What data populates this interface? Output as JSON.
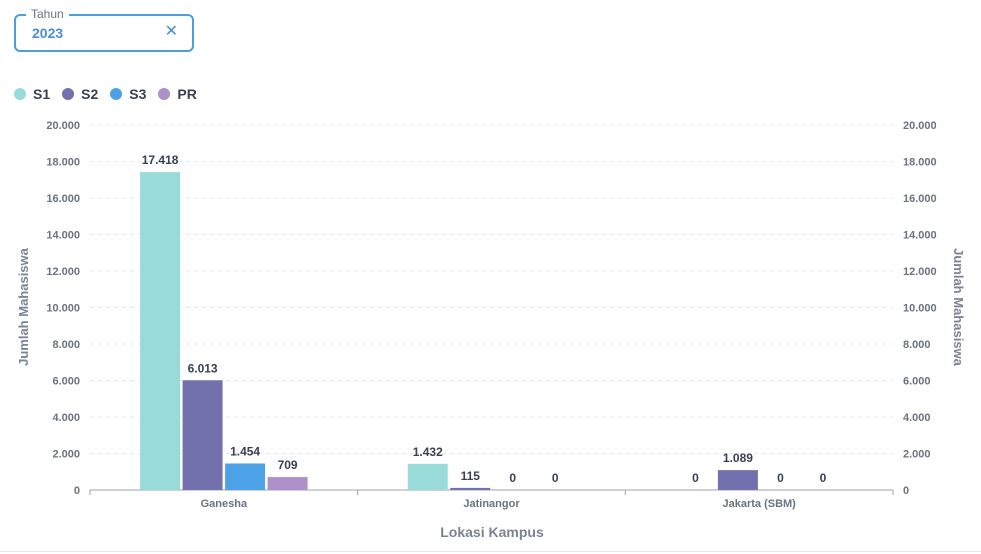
{
  "filter": {
    "label": "Tahun",
    "value": "2023",
    "clear_icon": "close-icon",
    "clear_glyph": "✕"
  },
  "legend": [
    {
      "name": "S1",
      "color": "#99dbd8"
    },
    {
      "name": "S2",
      "color": "#7370ae"
    },
    {
      "name": "S3",
      "color": "#4da1e6"
    },
    {
      "name": "PR",
      "color": "#ad8fcc"
    }
  ],
  "chart_data": {
    "type": "bar",
    "categories": [
      "Ganesha",
      "Jatinangor",
      "Jakarta (SBM)"
    ],
    "series": [
      {
        "name": "S1",
        "values": [
          17418,
          1432,
          0
        ],
        "labels": [
          "17.418",
          "1.432",
          "0"
        ]
      },
      {
        "name": "S2",
        "values": [
          6013,
          115,
          1089
        ],
        "labels": [
          "6.013",
          "115",
          "1.089"
        ]
      },
      {
        "name": "S3",
        "values": [
          1454,
          0,
          0
        ],
        "labels": [
          "1.454",
          "0",
          "0"
        ]
      },
      {
        "name": "PR",
        "values": [
          709,
          0,
          0
        ],
        "labels": [
          "709",
          "0",
          "0"
        ]
      }
    ],
    "xlabel": "Lokasi Kampus",
    "ylabel": "Jumlah Mahasiswa",
    "ylabel_right": "Jumlah Mahasiswa",
    "ylim": [
      0,
      20000
    ],
    "yticks": [
      0,
      2000,
      4000,
      6000,
      8000,
      10000,
      12000,
      14000,
      16000,
      18000,
      20000
    ],
    "ytick_labels": [
      "0",
      "2.000",
      "4.000",
      "6.000",
      "8.000",
      "10.000",
      "12.000",
      "14.000",
      "16.000",
      "18.000",
      "20.000"
    ],
    "grid": true,
    "legend_position": "top-left"
  }
}
